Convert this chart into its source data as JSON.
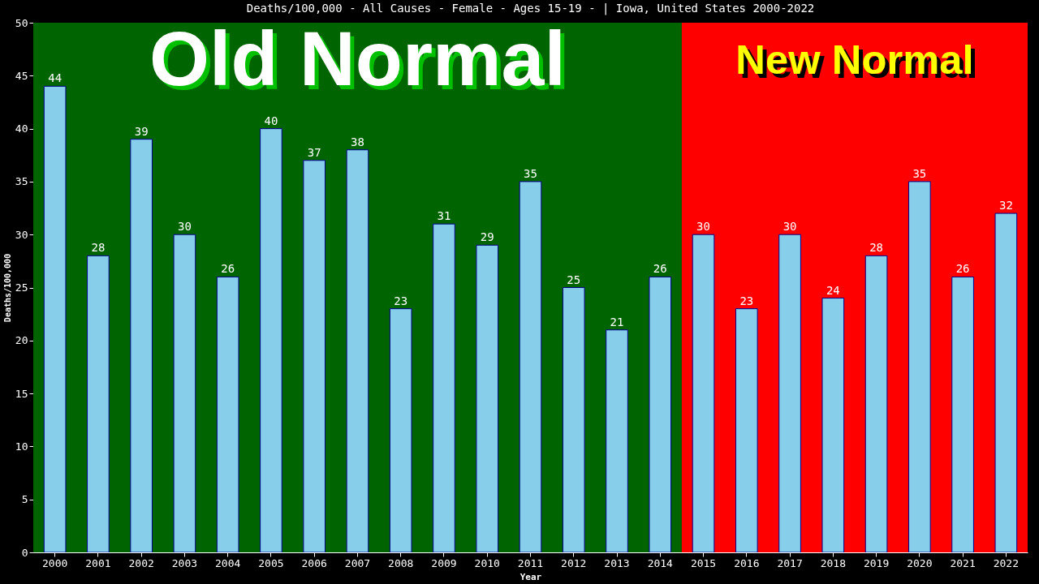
{
  "chart_data": {
    "type": "bar",
    "title": "Deaths/100,000 - All Causes - Female - Ages 15-19 -  | Iowa, United States 2000-2022",
    "xlabel": "Year",
    "ylabel": "Deaths/100,000",
    "categories": [
      "2000",
      "2001",
      "2002",
      "2003",
      "2004",
      "2005",
      "2006",
      "2007",
      "2008",
      "2009",
      "2010",
      "2011",
      "2012",
      "2013",
      "2014",
      "2015",
      "2016",
      "2017",
      "2018",
      "2019",
      "2020",
      "2021",
      "2022"
    ],
    "values": [
      44,
      28,
      39,
      30,
      26,
      40,
      37,
      38,
      23,
      31,
      29,
      35,
      25,
      21,
      26,
      30,
      23,
      30,
      24,
      28,
      35,
      26,
      32
    ],
    "color": "#87ceeb",
    "ylim": [
      0,
      50
    ],
    "yticks": [
      0,
      5,
      10,
      15,
      20,
      25,
      30,
      35,
      40,
      45,
      50
    ],
    "grid": false,
    "data_labels": true,
    "bands": [
      {
        "axis": "x",
        "from": "2000",
        "to": "2014",
        "label": "Old Normal",
        "color": "#006400"
      },
      {
        "axis": "x",
        "from": "2015",
        "to": "2022",
        "label": "New Normal",
        "color": "#ff0000"
      }
    ]
  }
}
